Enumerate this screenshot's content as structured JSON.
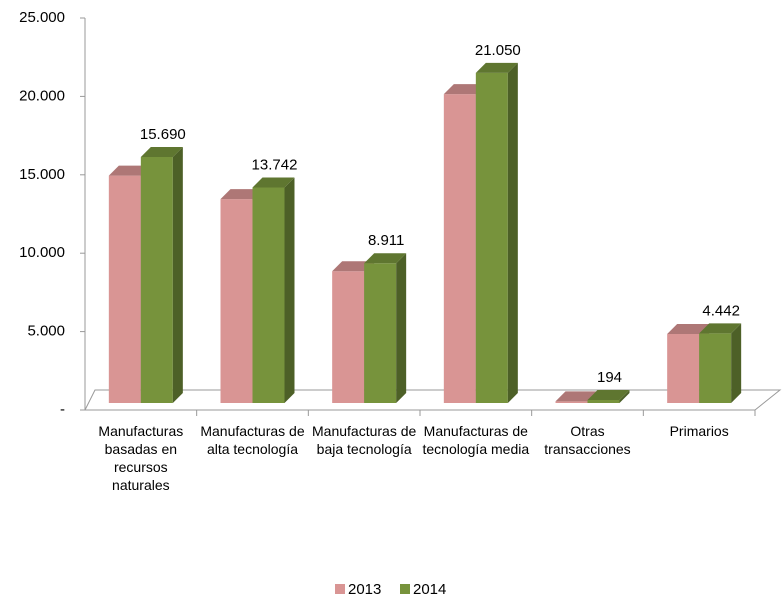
{
  "chart_data": {
    "type": "bar3d",
    "categories": [
      "Manufacturas basadas en recursos naturales",
      "Manufacturas de alta tecnología",
      "Manufacturas de baja tecnología",
      "Manufacturas de tecnología media",
      "Otras transacciones",
      "Primarios"
    ],
    "series": [
      {
        "name": "2013",
        "color": "#d99594",
        "values": [
          14500,
          13000,
          8400,
          19700,
          100,
          4400
        ]
      },
      {
        "name": "2014",
        "color": "#77933c",
        "values": [
          15690,
          13742,
          8911,
          21050,
          194,
          4442
        ],
        "value_labels": [
          "15.690",
          "13.742",
          "8.911",
          "21.050",
          "194",
          "4.442"
        ]
      }
    ],
    "ylim": [
      0,
      25000
    ],
    "yticks": [
      {
        "value": 0,
        "label": "-"
      },
      {
        "value": 5000,
        "label": "5.000"
      },
      {
        "value": 10000,
        "label": "10.000"
      },
      {
        "value": 15000,
        "label": "15.000"
      },
      {
        "value": 20000,
        "label": "20.000"
      },
      {
        "value": 25000,
        "label": "25.000"
      }
    ],
    "legend": "bottom"
  }
}
